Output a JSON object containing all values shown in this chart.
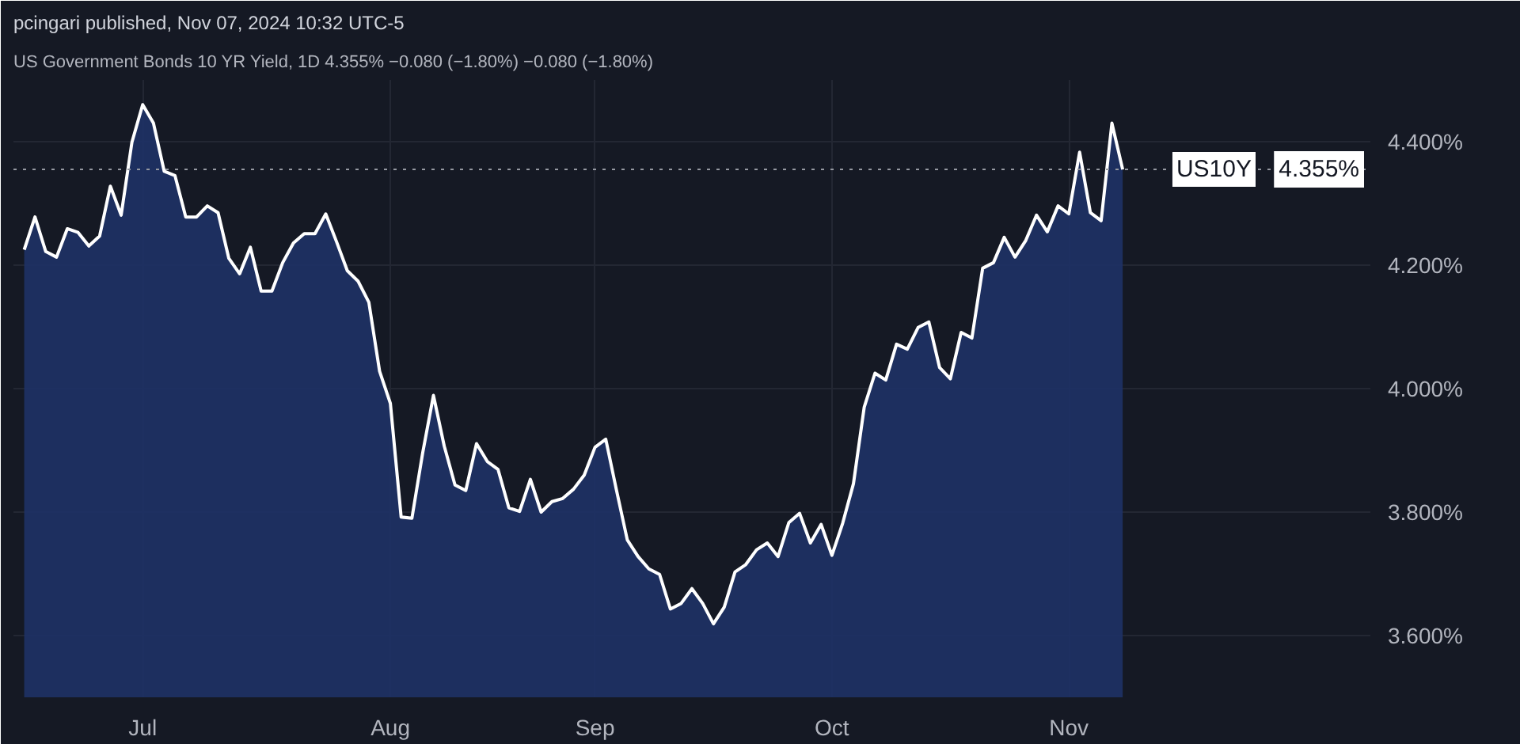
{
  "chart_data": {
    "type": "area",
    "title": "pcingari published, Nov 07, 2024 10:32 UTC-5",
    "subtitle": "US Government Bonds 10 YR Yield, 1D  4.355%  −0.080 (−1.80%)  −0.080 (−1.80%)",
    "categories": [
      null,
      null,
      null,
      null,
      null,
      null,
      null,
      null,
      null,
      null,
      null,
      "Jul",
      null,
      null,
      null,
      null,
      null,
      null,
      null,
      null,
      null,
      null,
      null,
      null,
      null,
      null,
      null,
      null,
      null,
      null,
      null,
      null,
      null,
      null,
      "Aug",
      null,
      null,
      null,
      null,
      null,
      null,
      null,
      null,
      null,
      null,
      null,
      null,
      null,
      null,
      null,
      null,
      null,
      null,
      "Sep",
      null,
      null,
      null,
      null,
      null,
      null,
      null,
      null,
      null,
      null,
      null,
      null,
      null,
      null,
      null,
      null,
      null,
      null,
      null,
      null,
      null,
      "Oct",
      null,
      null,
      null,
      null,
      null,
      null,
      null,
      null,
      null,
      null,
      null,
      null,
      null,
      null,
      null,
      null,
      null,
      null,
      null,
      null,
      null,
      "Nov",
      null,
      null,
      null,
      null,
      null
    ],
    "series": [
      {
        "color": "#1e3266",
        "values": [
          4.225,
          4.278,
          4.222,
          4.213,
          4.259,
          4.253,
          4.231,
          4.247,
          4.328,
          4.281,
          4.399,
          4.46,
          4.43,
          4.352,
          4.345,
          4.278,
          4.278,
          4.296,
          4.285,
          4.211,
          4.186,
          4.229,
          4.158,
          4.158,
          4.204,
          4.236,
          4.251,
          4.251,
          4.283,
          4.238,
          4.191,
          4.174,
          4.14,
          4.028,
          3.976,
          3.792,
          3.79,
          3.896,
          3.989,
          3.907,
          3.844,
          3.835,
          3.911,
          3.882,
          3.869,
          3.807,
          3.801,
          3.853,
          3.8,
          3.817,
          3.822,
          3.837,
          3.86,
          3.905,
          3.918,
          3.835,
          3.755,
          3.728,
          3.708,
          3.699,
          3.643,
          3.652,
          3.676,
          3.652,
          3.619,
          3.646,
          3.703,
          3.715,
          3.739,
          3.75,
          3.728,
          3.783,
          3.798,
          3.75,
          3.78,
          3.73,
          3.782,
          3.846,
          3.97,
          4.025,
          4.014,
          4.072,
          4.064,
          4.099,
          4.108,
          4.034,
          4.016,
          4.091,
          4.082,
          4.195,
          4.204,
          4.245,
          4.213,
          4.24,
          4.281,
          4.254,
          4.296,
          4.283,
          4.383,
          4.285,
          4.272,
          4.43,
          4.355
        ]
      }
    ],
    "ylim": [
      3.5,
      4.5
    ],
    "yticks": [
      {
        "value": 3.6,
        "label": "3.600%"
      },
      {
        "value": 3.8,
        "label": "3.800%"
      },
      {
        "value": 4.0,
        "label": "4.000%"
      },
      {
        "value": 4.2,
        "label": "4.200%"
      },
      {
        "value": 4.4,
        "label": "4.400%"
      }
    ],
    "ref_lines": [
      {
        "axis": "y",
        "value": 4.355,
        "label": "US10Y",
        "line_style": "dotted",
        "color": "#9598a1"
      }
    ],
    "annotations": [
      {
        "text": "4.355%",
        "y": 4.355
      }
    ],
    "grid": true,
    "marker": "none",
    "line_style": "solid"
  }
}
